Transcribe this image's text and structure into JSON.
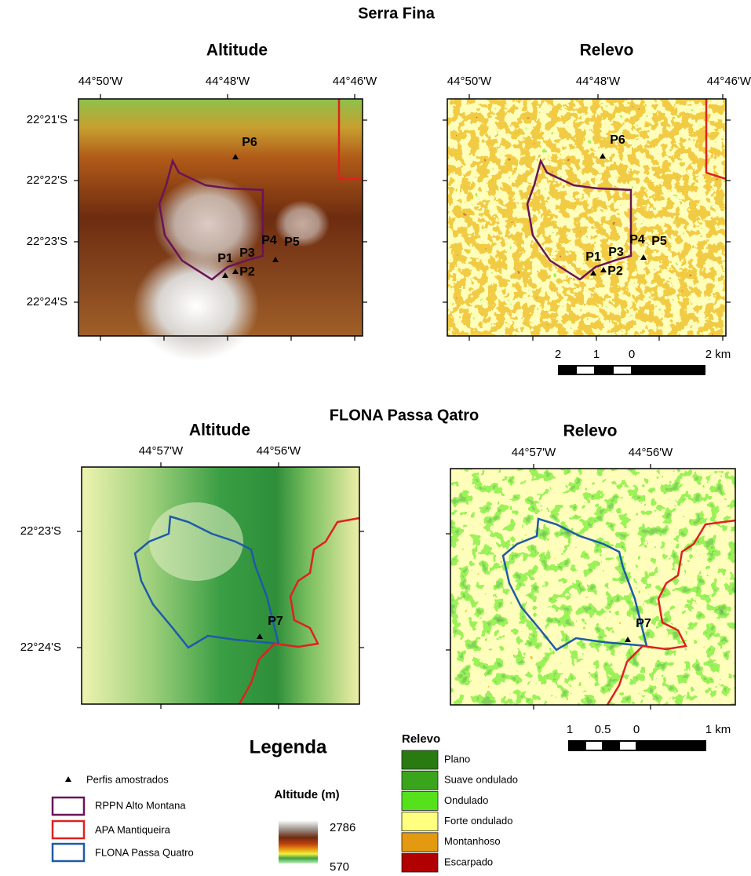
{
  "sections": [
    {
      "title": "Serra Fina",
      "panels": [
        {
          "title": "Altitude",
          "x_labels": [
            "44°50'W",
            "44°48'W",
            "44°46'W"
          ],
          "y_labels": [
            "22°21'S",
            "22°22'S",
            "22°23'S",
            "22°24'S"
          ],
          "points": [
            "P6",
            "P1",
            "P2",
            "P3",
            "P4",
            "P5"
          ]
        },
        {
          "title": "Relevo",
          "x_labels": [
            "44°50'W",
            "44°48'W",
            "44°46'W"
          ],
          "points": [
            "P6",
            "P1",
            "P2",
            "P3",
            "P4",
            "P5"
          ]
        }
      ],
      "scale_bar": [
        "2",
        "1",
        "0",
        "2 km"
      ]
    },
    {
      "title": "FLONA Passa Qatro",
      "panels": [
        {
          "title": "Altitude",
          "x_labels": [
            "44°57'W",
            "44°56'W"
          ],
          "y_labels": [
            "22°23'S",
            "22°24'S"
          ],
          "points": [
            "P7"
          ]
        },
        {
          "title": "Relevo",
          "x_labels": [
            "44°57'W",
            "44°56'W"
          ],
          "points": [
            "P7"
          ]
        }
      ],
      "scale_bar": [
        "1",
        "0.5",
        "0",
        "1 km"
      ]
    }
  ],
  "legend": {
    "title": "Legenda",
    "items": [
      "Perfis amostrados",
      "RPPN Alto Montana",
      "APA Mantiqueira",
      "FLONA Passa Quatro"
    ],
    "altitude": {
      "title": "Altitude (m)",
      "max": 2786,
      "min": 570
    },
    "relevo": {
      "title": "Relevo",
      "classes": [
        {
          "label": "Plano",
          "color": "#2a7a12"
        },
        {
          "label": "Suave ondulado",
          "color": "#3aa51c"
        },
        {
          "label": "Ondulado",
          "color": "#55e21b"
        },
        {
          "label": "Forte ondulado",
          "color": "#ffff80"
        },
        {
          "label": "Montanhoso",
          "color": "#e39a10"
        },
        {
          "label": "Escarpado",
          "color": "#b00000"
        }
      ]
    }
  }
}
